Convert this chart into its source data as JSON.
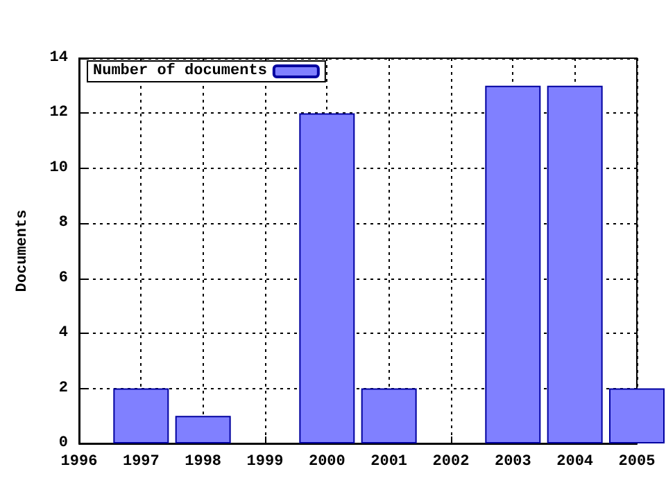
{
  "chart_data": {
    "type": "bar",
    "ylabel": "Documents",
    "x": [
      1997,
      1998,
      2000,
      2001,
      2003,
      2004,
      2005
    ],
    "series": [
      {
        "name": "Number of documents",
        "color": "#8080ff",
        "values": [
          2,
          1,
          12,
          2,
          13,
          13,
          2
        ]
      }
    ],
    "xlim": [
      1996,
      2005
    ],
    "xticks": [
      1996,
      1997,
      1998,
      1999,
      2000,
      2001,
      2002,
      2003,
      2004,
      2005
    ],
    "ylim": [
      0,
      14
    ],
    "yticks": [
      0,
      2,
      4,
      6,
      8,
      10,
      12,
      14
    ],
    "grid": true,
    "legend": "top left"
  }
}
